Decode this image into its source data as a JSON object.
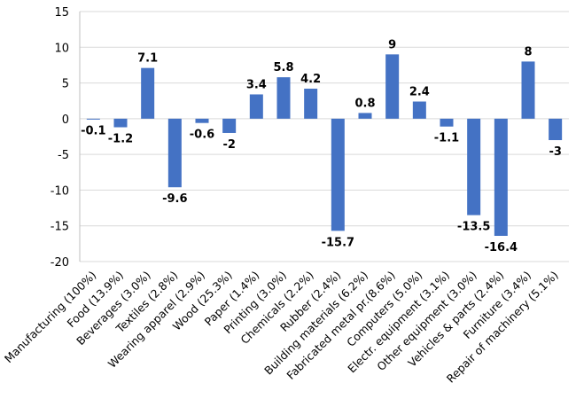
{
  "chart_data": {
    "type": "bar",
    "title": "",
    "xlabel": "",
    "ylabel": "",
    "ylim": [
      -20,
      15
    ],
    "yticks": [
      15,
      10,
      5,
      0,
      -5,
      -10,
      -15,
      -20
    ],
    "grid": "horizontal",
    "legend": "none",
    "bar_color": "#4472C4",
    "categories": [
      "Manufacturing (100%)",
      "Food (13.9%)",
      "Beverages (3.0%)",
      "Textiles (2.8%)",
      "Wearing apparel (2.9%)",
      "Wood (25.3%)",
      "Paper (1.4%)",
      "Printing (3.0%)",
      "Chemicals (2.2%)",
      "Rubber (2.4%)",
      "Building materials (6.2%)",
      "Fabricated metal pr.(8.6%)",
      "Computers (5.0%)",
      "Electr. equipment (3.1%)",
      "Other equipment (3.0%)",
      "Vehicles & parts (2.4%)",
      "Furniture (3.4%)",
      "Repair of machinery (5.1%)"
    ],
    "values": [
      -0.1,
      -1.2,
      7.1,
      -9.6,
      -0.6,
      -2,
      3.4,
      5.8,
      4.2,
      -15.7,
      0.8,
      9,
      2.4,
      -1.1,
      -13.5,
      -16.4,
      8,
      -3
    ],
    "data_labels": [
      "-0.1",
      "-1.2",
      "7.1",
      "-9.6",
      "-0.6",
      "-2",
      "3.4",
      "5.8",
      "4.2",
      "-15.7",
      "0.8",
      "9",
      "2.4",
      "-1.1",
      "-13.5",
      "-16.4",
      "8",
      "-3"
    ]
  }
}
